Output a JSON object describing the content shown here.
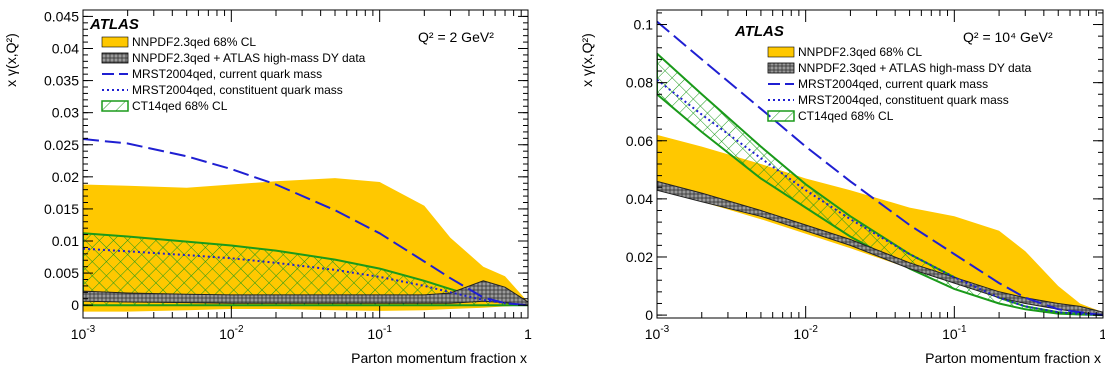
{
  "chart_data": [
    {
      "type": "line",
      "panel": "left",
      "atlas": "ATLAS",
      "q2_label": "Q² = 2 GeV²",
      "xlabel": "Parton momentum fraction x",
      "ylabel": "x γ(x,Q²)",
      "xscale": "log",
      "xlim": [
        0.001,
        1
      ],
      "ylim": [
        -0.002,
        0.046
      ],
      "yticks": [
        "0",
        "0.005",
        "0.01",
        "0.015",
        "0.02",
        "0.025",
        "0.03",
        "0.035",
        "0.04",
        "0.045"
      ],
      "ytick_values": [
        0,
        0.005,
        0.01,
        0.015,
        0.02,
        0.025,
        0.03,
        0.035,
        0.04,
        0.045
      ],
      "xtick_labels": [
        [
          "10",
          "-3"
        ],
        [
          "10",
          "-2"
        ],
        [
          "10",
          "-1"
        ],
        [
          "1",
          ""
        ]
      ],
      "xtick_values": [
        0.001,
        0.01,
        0.1,
        1
      ],
      "legend": [
        {
          "label": "NNPDF2.3qed 68% CL",
          "style": "band-yellow"
        },
        {
          "label": "NNPDF2.3qed + ATLAS high-mass DY data",
          "style": "band-hatched-grey"
        },
        {
          "label": "MRST2004qed, current quark mass",
          "style": "dashed-blue"
        },
        {
          "label": "MRST2004qed, constituent quark mass",
          "style": "dotted-blue"
        },
        {
          "label": "CT14qed 68% CL",
          "style": "band-hatched-green"
        }
      ],
      "series": [
        {
          "name": "NNPDF2.3qed 68% CL",
          "kind": "band",
          "x": [
            0.001,
            0.002,
            0.005,
            0.01,
            0.02,
            0.05,
            0.1,
            0.2,
            0.3,
            0.5,
            0.7,
            1.0
          ],
          "lower": [
            -0.001,
            -0.001,
            -0.0008,
            -0.0006,
            -0.0006,
            -0.0008,
            -0.0009,
            -0.0008,
            -0.0006,
            -0.0004,
            -0.0002,
            0
          ],
          "upper": [
            0.0188,
            0.0186,
            0.0183,
            0.0188,
            0.0193,
            0.0198,
            0.0192,
            0.0155,
            0.0105,
            0.006,
            0.0045,
            0.0005
          ]
        },
        {
          "name": "NNPDF2.3qed + ATLAS high-mass DY data",
          "kind": "band",
          "x": [
            0.001,
            0.002,
            0.005,
            0.01,
            0.02,
            0.05,
            0.1,
            0.2,
            0.3,
            0.5,
            0.7,
            1.0
          ],
          "lower": [
            0.0006,
            0.0005,
            0.0004,
            0.0003,
            0.0003,
            0.0003,
            0.0003,
            0.0003,
            0.0003,
            0.0006,
            0.0004,
            0
          ],
          "upper": [
            0.0022,
            0.0019,
            0.0017,
            0.0016,
            0.0016,
            0.0016,
            0.0016,
            0.0016,
            0.0019,
            0.0038,
            0.0028,
            0.0005
          ]
        },
        {
          "name": "MRST2004qed, current quark mass",
          "kind": "line",
          "dash": "dashed",
          "x": [
            0.001,
            0.002,
            0.005,
            0.01,
            0.02,
            0.05,
            0.1,
            0.2,
            0.3,
            0.5,
            0.7,
            1.0
          ],
          "y": [
            0.0259,
            0.0252,
            0.0232,
            0.0212,
            0.0188,
            0.0148,
            0.0112,
            0.0068,
            0.0042,
            0.0012,
            0.0003,
            0
          ]
        },
        {
          "name": "MRST2004qed, constituent quark mass",
          "kind": "line",
          "dash": "dotted",
          "x": [
            0.001,
            0.002,
            0.005,
            0.01,
            0.02,
            0.05,
            0.1,
            0.2,
            0.3,
            0.5,
            0.7,
            1.0
          ],
          "y": [
            0.0088,
            0.0084,
            0.0078,
            0.0073,
            0.0066,
            0.0055,
            0.0044,
            0.003,
            0.002,
            0.0008,
            0.0003,
            0
          ]
        },
        {
          "name": "CT14qed 68% CL",
          "kind": "band",
          "x": [
            0.001,
            0.002,
            0.005,
            0.01,
            0.02,
            0.05,
            0.1,
            0.2,
            0.3,
            0.5,
            0.7,
            1.0
          ],
          "lower": [
            0,
            0,
            0,
            0,
            0,
            0,
            0,
            0,
            0,
            0,
            0,
            0
          ],
          "upper": [
            0.0112,
            0.0107,
            0.0099,
            0.0093,
            0.0085,
            0.0071,
            0.0057,
            0.0038,
            0.0025,
            0.001,
            0.0004,
            0
          ]
        }
      ]
    },
    {
      "type": "line",
      "panel": "right",
      "atlas": "ATLAS",
      "q2_label": "Q² = 10⁴ GeV²",
      "xlabel": "Parton momentum fraction x",
      "ylabel": "x γ(x,Q²)",
      "xscale": "log",
      "xlim": [
        0.001,
        1
      ],
      "ylim": [
        -0.001,
        0.105
      ],
      "yticks": [
        "0",
        "0.02",
        "0.04",
        "0.06",
        "0.08",
        "0.1"
      ],
      "ytick_values": [
        0,
        0.02,
        0.04,
        0.06,
        0.08,
        0.1
      ],
      "xtick_labels": [
        [
          "10",
          "-3"
        ],
        [
          "10",
          "-2"
        ],
        [
          "10",
          "-1"
        ],
        [
          "1",
          ""
        ]
      ],
      "xtick_values": [
        0.001,
        0.01,
        0.1,
        1
      ],
      "legend": [
        {
          "label": "NNPDF2.3qed 68% CL",
          "style": "band-yellow"
        },
        {
          "label": "NNPDF2.3qed + ATLAS high-mass DY data",
          "style": "band-hatched-grey"
        },
        {
          "label": "MRST2004qed, current quark mass",
          "style": "dashed-blue"
        },
        {
          "label": "MRST2004qed, constituent quark mass",
          "style": "dotted-blue"
        },
        {
          "label": "CT14qed 68% CL",
          "style": "band-hatched-green"
        }
      ],
      "series": [
        {
          "name": "NNPDF2.3qed 68% CL",
          "kind": "band",
          "x": [
            0.001,
            0.002,
            0.005,
            0.01,
            0.02,
            0.05,
            0.1,
            0.2,
            0.3,
            0.5,
            0.7,
            1.0
          ],
          "lower": [
            0.043,
            0.039,
            0.033,
            0.028,
            0.023,
            0.016,
            0.011,
            0.006,
            0.004,
            0.002,
            0.001,
            0
          ],
          "upper": [
            0.062,
            0.058,
            0.052,
            0.047,
            0.043,
            0.037,
            0.034,
            0.029,
            0.022,
            0.01,
            0.004,
            0.001
          ]
        },
        {
          "name": "NNPDF2.3qed + ATLAS high-mass DY data",
          "kind": "band",
          "x": [
            0.001,
            0.002,
            0.005,
            0.01,
            0.02,
            0.05,
            0.1,
            0.2,
            0.3,
            0.5,
            0.7,
            1.0
          ],
          "lower": [
            0.043,
            0.039,
            0.034,
            0.029,
            0.024,
            0.016,
            0.011,
            0.006,
            0.004,
            0.002,
            0.001,
            0
          ],
          "upper": [
            0.046,
            0.042,
            0.036,
            0.031,
            0.026,
            0.018,
            0.013,
            0.008,
            0.006,
            0.004,
            0.003,
            0.001
          ]
        },
        {
          "name": "MRST2004qed, current quark mass",
          "kind": "line",
          "dash": "dashed",
          "x": [
            0.001,
            0.002,
            0.005,
            0.01,
            0.02,
            0.05,
            0.1,
            0.2,
            0.3,
            0.5,
            0.7,
            1.0
          ],
          "y": [
            0.101,
            0.088,
            0.071,
            0.058,
            0.046,
            0.031,
            0.021,
            0.011,
            0.006,
            0.002,
            0.001,
            0
          ]
        },
        {
          "name": "MRST2004qed, constituent quark mass",
          "kind": "line",
          "dash": "dotted",
          "x": [
            0.001,
            0.002,
            0.005,
            0.01,
            0.02,
            0.05,
            0.1,
            0.2,
            0.3,
            0.5,
            0.7,
            1.0
          ],
          "y": [
            0.081,
            0.069,
            0.054,
            0.043,
            0.033,
            0.021,
            0.013,
            0.006,
            0.003,
            0.001,
            0.0004,
            0
          ]
        },
        {
          "name": "CT14qed 68% CL",
          "kind": "band",
          "x": [
            0.001,
            0.002,
            0.005,
            0.01,
            0.02,
            0.05,
            0.1,
            0.2,
            0.3,
            0.5,
            0.7,
            1.0
          ],
          "lower": [
            0.076,
            0.063,
            0.047,
            0.037,
            0.027,
            0.016,
            0.009,
            0.004,
            0.002,
            0.0005,
            0.0002,
            0
          ],
          "upper": [
            0.09,
            0.076,
            0.058,
            0.045,
            0.034,
            0.021,
            0.013,
            0.006,
            0.003,
            0.001,
            0.0004,
            0
          ]
        }
      ]
    }
  ],
  "colors": {
    "nnpdf_band": "#ffc800",
    "atlas_band": "#7a7a7a",
    "mrst": "#1f1fd2",
    "ct14": "#1a9a1a"
  }
}
